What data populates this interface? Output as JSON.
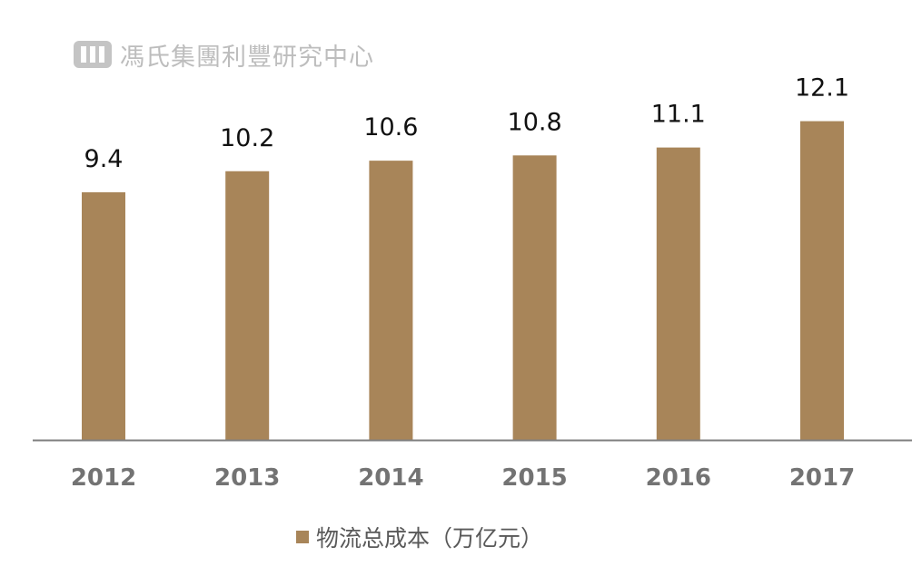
{
  "watermark": {
    "text": "馮氏集團利豐研究中心",
    "logo_icon": "fung-group-logo-icon"
  },
  "colors": {
    "bar": "#A88559",
    "axis": "#7f7f7f",
    "tick_label": "#737373",
    "data_label": "#111111",
    "watermark": "#bdbdbd"
  },
  "chart_data": {
    "type": "bar",
    "title": "",
    "xlabel": "",
    "ylabel": "",
    "categories": [
      "2012",
      "2013",
      "2014",
      "2015",
      "2016",
      "2017"
    ],
    "series": [
      {
        "name": "物流总成本（万亿元）",
        "values": [
          9.4,
          10.2,
          10.6,
          10.8,
          11.1,
          12.1
        ]
      }
    ],
    "data_labels": [
      "9.4",
      "10.2",
      "10.6",
      "10.8",
      "11.1",
      "12.1"
    ],
    "ylim": [
      0,
      13.6
    ],
    "grid": false,
    "legend_position": "bottom-center"
  }
}
